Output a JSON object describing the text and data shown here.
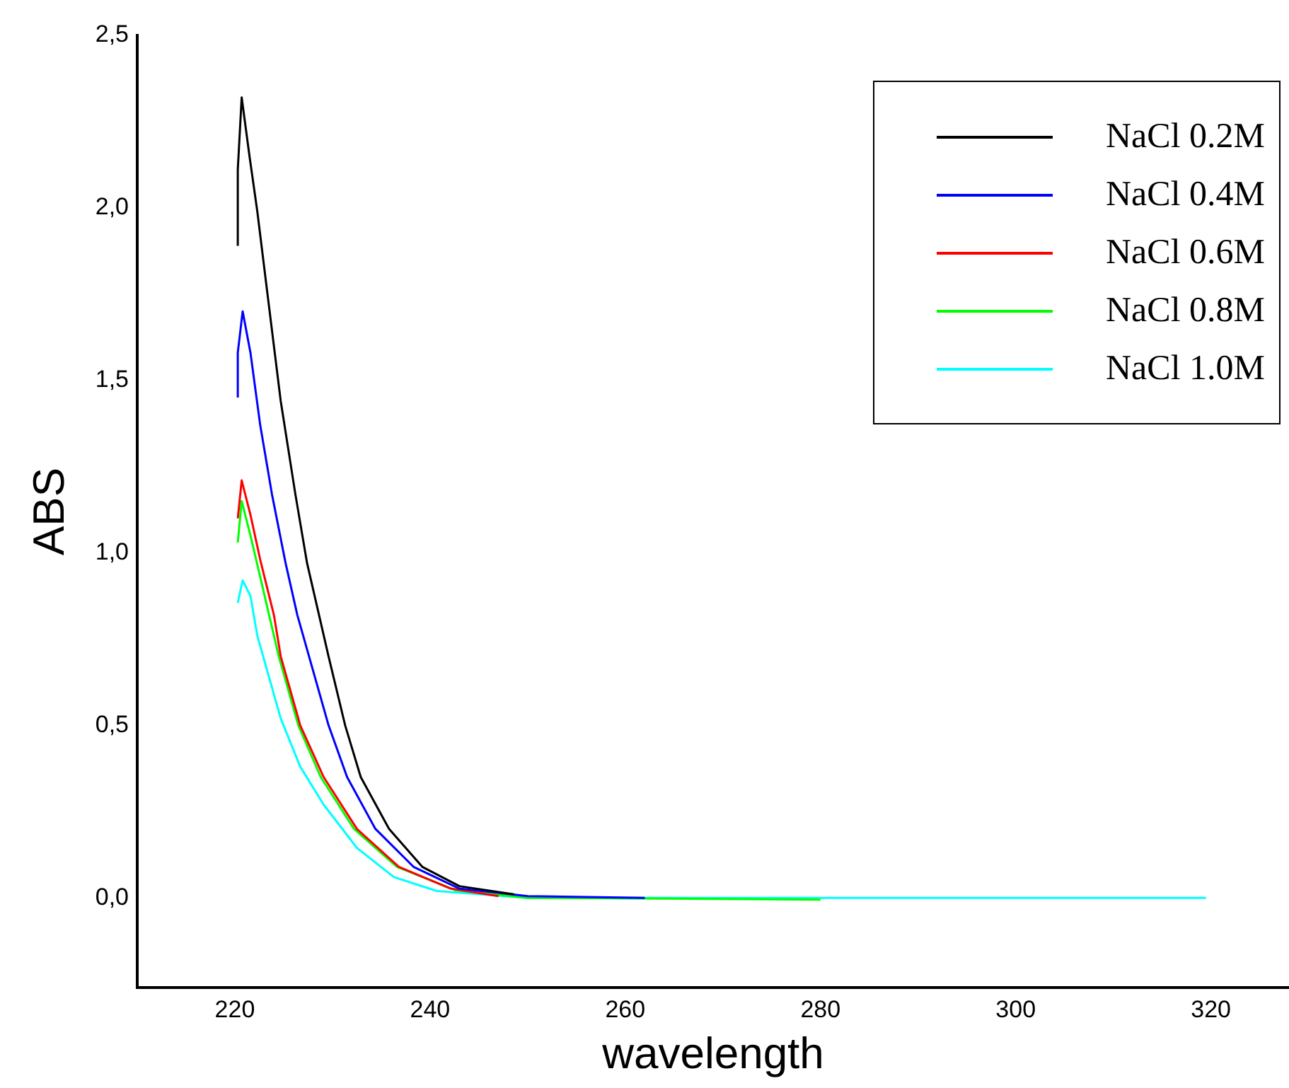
{
  "chart_data": {
    "type": "line",
    "xlabel": "wavelength",
    "ylabel": "ABS",
    "xlim": [
      210,
      328
    ],
    "xticks": [
      220,
      240,
      260,
      280,
      300,
      320
    ],
    "ylim": [
      -0.26,
      2.5
    ],
    "yticks": [
      {
        "value": 0,
        "label": "0,0"
      },
      {
        "value": 0.5,
        "label": "0,5"
      },
      {
        "value": 1,
        "label": "1,0"
      },
      {
        "value": 1.5,
        "label": "1,5"
      },
      {
        "value": 2,
        "label": "2,0"
      },
      {
        "value": 2.5,
        "label": "2,5"
      }
    ],
    "grid": false,
    "legend": "top right",
    "marker": "none",
    "line_style": "solid",
    "series": [
      {
        "name": "NaCl 0.2M",
        "color": "#000000",
        "x": [
          220.3,
          220.3,
          220.7,
          221.5,
          222.3,
          223.3,
          224.7,
          226.2,
          227.4,
          229.6,
          231.3,
          232.9,
          235.8,
          239.2,
          243,
          248.6
        ],
        "values": [
          1.89,
          2.11,
          2.32,
          2.15,
          1.99,
          1.76,
          1.44,
          1.17,
          0.97,
          0.7,
          0.5,
          0.35,
          0.2,
          0.09,
          0.034,
          0.01
        ]
      },
      {
        "name": "NaCl 0.4M",
        "color": "#0000ff",
        "x": [
          220.3,
          220.3,
          220.8,
          221.6,
          222.6,
          223.8,
          225.2,
          226.4,
          227.6,
          229.6,
          231.5,
          234.4,
          238.3,
          243,
          250,
          262
        ],
        "values": [
          1.45,
          1.58,
          1.7,
          1.58,
          1.37,
          1.17,
          0.97,
          0.82,
          0.7,
          0.5,
          0.35,
          0.2,
          0.09,
          0.027,
          0.005,
          0
        ]
      },
      {
        "name": "NaCl 0.6M",
        "color": "#ff0000",
        "x": [
          220.3,
          220.7,
          221.6,
          222.6,
          224,
          224.7,
          226.7,
          229.1,
          232.5,
          236.8,
          242.1,
          247
        ],
        "values": [
          1.1,
          1.21,
          1.11,
          0.98,
          0.82,
          0.7,
          0.5,
          0.35,
          0.2,
          0.09,
          0.027,
          0.005
        ]
      },
      {
        "name": "NaCl 0.8M",
        "color": "#00ff00",
        "x": [
          220.3,
          220.7,
          221.6,
          222.6,
          224.5,
          226.5,
          228.8,
          232.2,
          236.6,
          242.6,
          250,
          280
        ],
        "values": [
          1.03,
          1.15,
          1.05,
          0.93,
          0.7,
          0.5,
          0.35,
          0.2,
          0.09,
          0.022,
          0,
          -0.005
        ]
      },
      {
        "name": "NaCl 1.0M",
        "color": "#00ffff",
        "x": [
          220.3,
          220.8,
          221.6,
          222.3,
          223.5,
          224.7,
          226.7,
          229.1,
          232.5,
          236.3,
          240.7,
          250,
          319.5
        ],
        "values": [
          0.855,
          0.92,
          0.875,
          0.76,
          0.64,
          0.52,
          0.38,
          0.27,
          0.145,
          0.06,
          0.02,
          0,
          0
        ]
      }
    ]
  }
}
